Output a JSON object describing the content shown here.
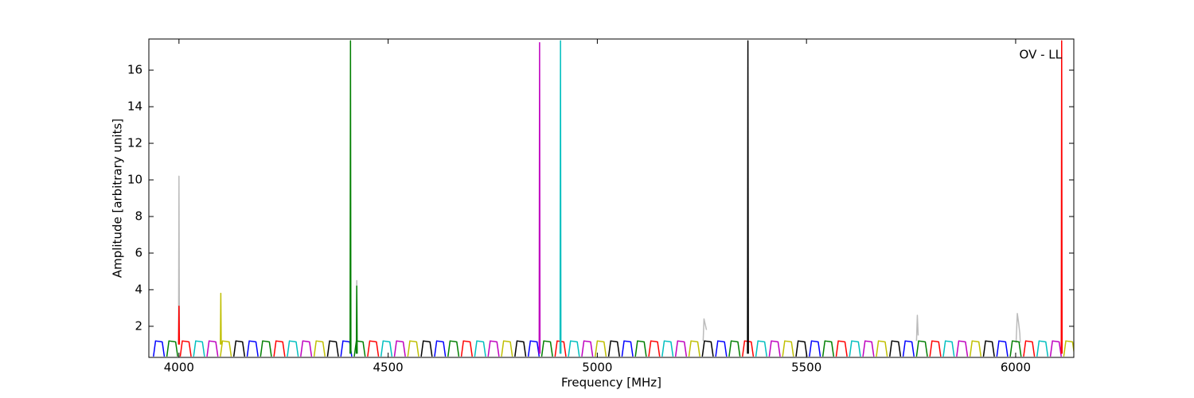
{
  "chart_data": {
    "type": "line",
    "annotation": "OV - LL",
    "xlabel": "Frequency [MHz]",
    "ylabel": "Amplitude [arbitrary units]",
    "xlim": [
      3928,
      6139
    ],
    "xticks": [
      4000,
      4500,
      5000,
      5500,
      6000
    ],
    "ylim": [
      0.3,
      17.7
    ],
    "yticks": [
      2,
      4,
      6,
      8,
      10,
      12,
      14,
      16
    ],
    "grid": false,
    "series": [
      {
        "color": "#bbbbbb",
        "x": [
          3999,
          4000,
          4001,
          4002,
          4424,
          4425,
          4426,
          4427,
          5253,
          5255,
          5258,
          5261,
          5262,
          5763,
          5765,
          5767,
          5768,
          6001,
          6004,
          6007,
          6010,
          6011
        ],
        "values": [
          1.1,
          10.2,
          1.1,
          null,
          1,
          4.5,
          1,
          null,
          1.2,
          2.4,
          2.1,
          1.8,
          null,
          1.2,
          2.6,
          1.5,
          null,
          1.1,
          2.7,
          2.2,
          1.6,
          1.1
        ]
      },
      {
        "color": "#0000ff",
        "x": [
          3939,
          3944,
          3960,
          3965,
          3967,
          4163,
          4168,
          4184,
          4189,
          4191,
          4387,
          4392,
          4408,
          4413,
          4415,
          4611,
          4616,
          4632,
          4637,
          4639,
          4835,
          4840,
          4856,
          4861,
          4863,
          5059,
          5064,
          5080,
          5085,
          5087,
          5283,
          5288,
          5304,
          5309,
          5311,
          5507,
          5512,
          5528,
          5533,
          5535,
          5731,
          5736,
          5752,
          5757,
          5759,
          5955,
          5960,
          5976,
          5981
        ],
        "values": [
          0.35,
          1.2,
          1.15,
          0.35,
          null,
          0.35,
          1.2,
          1.15,
          0.35,
          null,
          0.35,
          1.2,
          1.15,
          0.35,
          null,
          0.35,
          1.2,
          1.15,
          0.35,
          null,
          0.35,
          1.2,
          1.15,
          0.35,
          null,
          0.35,
          1.2,
          1.15,
          0.35,
          null,
          0.35,
          1.2,
          1.15,
          0.35,
          null,
          0.35,
          1.2,
          1.15,
          0.35,
          null,
          0.35,
          1.2,
          1.15,
          0.35,
          null,
          0.35,
          1.2,
          1.15,
          0.35
        ]
      },
      {
        "color": "#007f00",
        "x": [
          3971,
          3976,
          3992,
          3997,
          3999,
          4195,
          4200,
          4216,
          4221,
          4223,
          4419,
          4424,
          4440,
          4445,
          4447,
          4643,
          4648,
          4664,
          4669,
          4671,
          4867,
          4872,
          4888,
          4893,
          4895,
          5091,
          5096,
          5112,
          5117,
          5119,
          5315,
          5320,
          5336,
          5341,
          5343,
          5539,
          5544,
          5560,
          5565,
          5567,
          5763,
          5768,
          5784,
          5789,
          5791,
          5987,
          5992,
          6008,
          6013
        ],
        "values": [
          0.35,
          1.2,
          1.15,
          0.35,
          null,
          0.35,
          1.2,
          1.15,
          0.35,
          null,
          0.35,
          1.2,
          1.15,
          0.35,
          null,
          0.35,
          1.2,
          1.15,
          0.35,
          null,
          0.35,
          1.2,
          1.15,
          0.35,
          null,
          0.35,
          1.2,
          1.15,
          0.35,
          null,
          0.35,
          1.2,
          1.15,
          0.35,
          null,
          0.35,
          1.2,
          1.15,
          0.35,
          null,
          0.35,
          1.2,
          1.15,
          0.35,
          null,
          0.35,
          1.2,
          1.15,
          0.35
        ]
      },
      {
        "color": "#ff0000",
        "x": [
          4003,
          4008,
          4024,
          4029,
          4031,
          4227,
          4232,
          4248,
          4253,
          4255,
          4451,
          4456,
          4472,
          4477,
          4479,
          4675,
          4680,
          4696,
          4701,
          4703,
          4899,
          4904,
          4920,
          4925,
          4927,
          5123,
          5128,
          5144,
          5149,
          5151,
          5347,
          5352,
          5368,
          5373,
          5375,
          5571,
          5576,
          5592,
          5597,
          5599,
          5795,
          5800,
          5816,
          5821,
          5823,
          6019,
          6024,
          6040,
          6045
        ],
        "values": [
          0.35,
          1.2,
          1.15,
          0.35,
          null,
          0.35,
          1.2,
          1.15,
          0.35,
          null,
          0.35,
          1.2,
          1.15,
          0.35,
          null,
          0.35,
          1.2,
          1.15,
          0.35,
          null,
          0.35,
          1.2,
          1.15,
          0.35,
          null,
          0.35,
          1.2,
          1.15,
          0.35,
          null,
          0.35,
          1.2,
          1.15,
          0.35,
          null,
          0.35,
          1.2,
          1.15,
          0.35,
          null,
          0.35,
          1.2,
          1.15,
          0.35,
          null,
          0.35,
          1.2,
          1.15,
          0.35
        ]
      },
      {
        "color": "#00bfbf",
        "x": [
          4035,
          4040,
          4056,
          4061,
          4063,
          4259,
          4264,
          4280,
          4285,
          4287,
          4483,
          4488,
          4504,
          4509,
          4511,
          4707,
          4712,
          4728,
          4733,
          4735,
          4931,
          4936,
          4952,
          4957,
          4959,
          5155,
          5160,
          5176,
          5181,
          5183,
          5379,
          5384,
          5400,
          5405,
          5407,
          5603,
          5608,
          5624,
          5629,
          5631,
          5827,
          5832,
          5848,
          5853,
          5855,
          6051,
          6056,
          6072,
          6077
        ],
        "values": [
          0.35,
          1.2,
          1.15,
          0.35,
          null,
          0.35,
          1.2,
          1.15,
          0.35,
          null,
          0.35,
          1.2,
          1.15,
          0.35,
          null,
          0.35,
          1.2,
          1.15,
          0.35,
          null,
          0.35,
          1.2,
          1.15,
          0.35,
          null,
          0.35,
          1.2,
          1.15,
          0.35,
          null,
          0.35,
          1.2,
          1.15,
          0.35,
          null,
          0.35,
          1.2,
          1.15,
          0.35,
          null,
          0.35,
          1.2,
          1.15,
          0.35,
          null,
          0.35,
          1.2,
          1.15,
          0.35
        ]
      },
      {
        "color": "#bf00bf",
        "x": [
          4067,
          4072,
          4088,
          4093,
          4095,
          4291,
          4296,
          4312,
          4317,
          4319,
          4515,
          4520,
          4536,
          4541,
          4543,
          4739,
          4744,
          4760,
          4765,
          4767,
          4963,
          4968,
          4984,
          4989,
          4991,
          5187,
          5192,
          5208,
          5213,
          5215,
          5411,
          5416,
          5432,
          5437,
          5439,
          5635,
          5640,
          5656,
          5661,
          5663,
          5859,
          5864,
          5880,
          5885,
          5887,
          6083,
          6088,
          6104,
          6109
        ],
        "values": [
          0.35,
          1.2,
          1.15,
          0.35,
          null,
          0.35,
          1.2,
          1.15,
          0.35,
          null,
          0.35,
          1.2,
          1.15,
          0.35,
          null,
          0.35,
          1.2,
          1.15,
          0.35,
          null,
          0.35,
          1.2,
          1.15,
          0.35,
          null,
          0.35,
          1.2,
          1.15,
          0.35,
          null,
          0.35,
          1.2,
          1.15,
          0.35,
          null,
          0.35,
          1.2,
          1.15,
          0.35,
          null,
          0.35,
          1.2,
          1.15,
          0.35,
          null,
          0.35,
          1.2,
          1.15,
          0.35
        ]
      },
      {
        "color": "#bfbf00",
        "x": [
          4099,
          4104,
          4120,
          4125,
          4127,
          4323,
          4328,
          4344,
          4349,
          4351,
          4547,
          4552,
          4568,
          4573,
          4575,
          4771,
          4776,
          4792,
          4797,
          4799,
          4995,
          5000,
          5016,
          5021,
          5023,
          5219,
          5224,
          5240,
          5245,
          5247,
          5443,
          5448,
          5464,
          5469,
          5471,
          5667,
          5672,
          5688,
          5693,
          5695,
          5891,
          5896,
          5912,
          5917,
          5919,
          6115,
          6120,
          6136,
          6141
        ],
        "values": [
          0.35,
          1.2,
          1.15,
          0.35,
          null,
          0.35,
          1.2,
          1.15,
          0.35,
          null,
          0.35,
          1.2,
          1.15,
          0.35,
          null,
          0.35,
          1.2,
          1.15,
          0.35,
          null,
          0.35,
          1.2,
          1.15,
          0.35,
          null,
          0.35,
          1.2,
          1.15,
          0.35,
          null,
          0.35,
          1.2,
          1.15,
          0.35,
          null,
          0.35,
          1.2,
          1.15,
          0.35,
          null,
          0.35,
          1.2,
          1.15,
          0.35,
          null,
          0.35,
          1.2,
          1.15,
          0.35
        ]
      },
      {
        "color": "#000000",
        "x": [
          4131,
          4136,
          4152,
          4157,
          4159,
          4355,
          4360,
          4376,
          4381,
          4383,
          4579,
          4584,
          4600,
          4605,
          4607,
          4803,
          4808,
          4824,
          4829,
          4831,
          5027,
          5032,
          5048,
          5053,
          5055,
          5251,
          5256,
          5272,
          5277,
          5279,
          5475,
          5480,
          5496,
          5501,
          5503,
          5699,
          5704,
          5720,
          5725,
          5727,
          5923,
          5928,
          5944,
          5949
        ],
        "values": [
          0.35,
          1.2,
          1.15,
          0.35,
          null,
          0.35,
          1.2,
          1.15,
          0.35,
          null,
          0.35,
          1.2,
          1.15,
          0.35,
          null,
          0.35,
          1.2,
          1.15,
          0.35,
          null,
          0.35,
          1.2,
          1.15,
          0.35,
          null,
          0.35,
          1.2,
          1.15,
          0.35,
          null,
          0.35,
          1.2,
          1.15,
          0.35,
          null,
          0.35,
          1.2,
          1.15,
          0.35,
          null,
          0.35,
          1.2,
          1.15,
          0.35
        ]
      },
      {
        "color": "#ff0000",
        "x": [
          3999,
          4000,
          4001
        ],
        "values": [
          1,
          3.1,
          1
        ]
      },
      {
        "color": "#bfbf00",
        "x": [
          4099,
          4100,
          4101
        ],
        "values": [
          1,
          3.8,
          1
        ]
      },
      {
        "color": "#007f00",
        "x": [
          4409,
          4410,
          4411
        ],
        "values": [
          0.5,
          17.6,
          0.5
        ]
      },
      {
        "color": "#007f00",
        "x": [
          4424,
          4425,
          4426
        ],
        "values": [
          0.5,
          4.2,
          0.5
        ]
      },
      {
        "color": "#bf00bf",
        "x": [
          4861,
          4862,
          4863
        ],
        "values": [
          0.5,
          17.5,
          0.5
        ]
      },
      {
        "color": "#00bfbf",
        "x": [
          4911,
          4912,
          4913
        ],
        "values": [
          0.5,
          17.6,
          0.5
        ]
      },
      {
        "color": "#000000",
        "x": [
          5359,
          5360,
          5361
        ],
        "values": [
          0.5,
          17.6,
          0.5
        ]
      },
      {
        "color": "#ff0000",
        "x": [
          6109,
          6110,
          6111
        ],
        "values": [
          0.5,
          17.6,
          0.5
        ]
      }
    ]
  }
}
